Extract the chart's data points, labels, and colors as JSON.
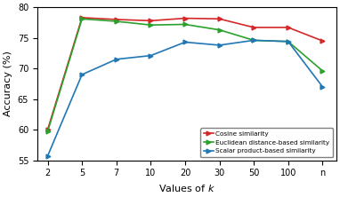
{
  "x_labels": [
    "2",
    "5",
    "7",
    "10",
    "20",
    "30",
    "50",
    "100",
    "n"
  ],
  "x_positions": [
    0,
    1,
    2,
    3,
    4,
    5,
    6,
    7,
    8
  ],
  "cosine": [
    60.0,
    78.3,
    78.0,
    77.8,
    78.2,
    78.1,
    76.7,
    76.7,
    74.5
  ],
  "euclidean": [
    59.7,
    78.1,
    77.7,
    77.1,
    77.2,
    76.3,
    74.6,
    74.4,
    69.6
  ],
  "scalar": [
    55.7,
    69.0,
    71.5,
    72.1,
    74.3,
    73.8,
    74.6,
    74.4,
    67.0
  ],
  "cosine_color": "#d62728",
  "euclidean_color": "#2ca02c",
  "scalar_color": "#1f77b4",
  "xlabel": "Values of $k$",
  "ylabel": "Accuracy (%)",
  "ylim": [
    55,
    80
  ],
  "yticks": [
    55,
    60,
    65,
    70,
    75,
    80
  ],
  "legend_labels": [
    "Cosine similarity",
    "Euclidean distance-based similarity",
    "Scalar product-based similarity"
  ],
  "marker": ">",
  "markersize": 3.5,
  "linewidth": 1.2
}
